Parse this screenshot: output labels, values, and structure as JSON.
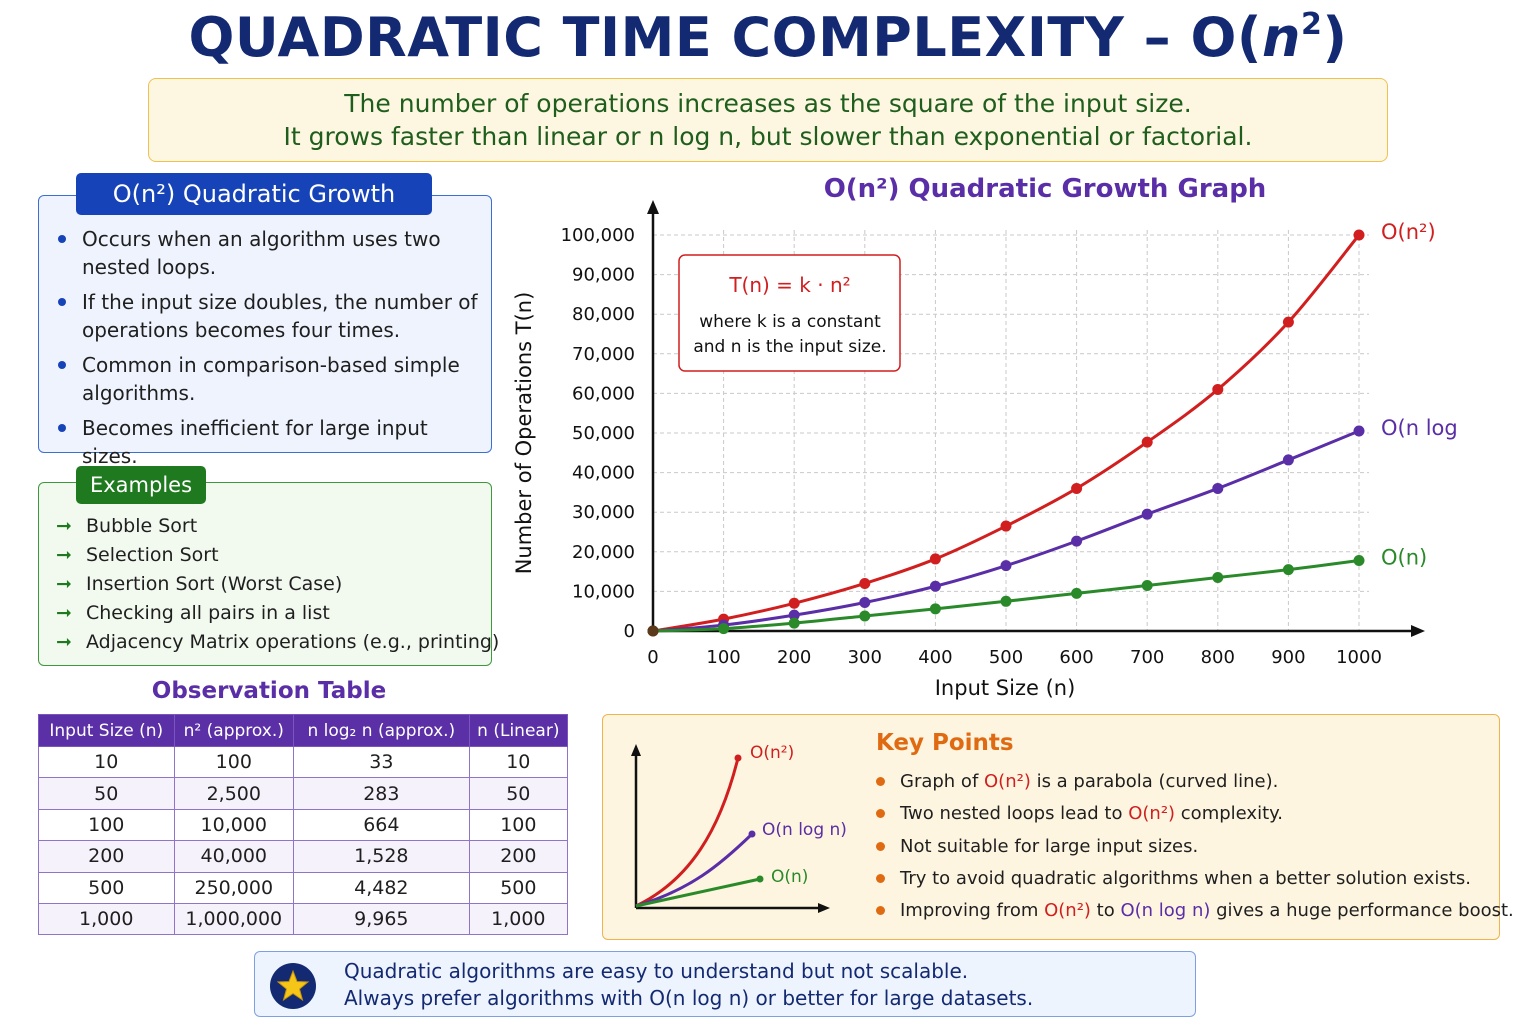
{
  "title": {
    "prefix": "QUADRATIC TIME COMPLEXITY – O(",
    "var": "n",
    "sup": "2",
    "suffix": ")"
  },
  "intro": {
    "line1": "The number of operations increases as the square of the input size.",
    "line2": "It grows faster than linear or n log n, but slower than exponential or factorial."
  },
  "growth": {
    "heading": "O(n²) Quadratic Growth",
    "items": [
      "Occurs when an algorithm uses two nested loops.",
      "If the input size doubles, the number of operations becomes four times.",
      "Common in comparison-based simple algorithms.",
      "Becomes inefficient for large input sizes."
    ]
  },
  "examples": {
    "heading": "Examples",
    "items": [
      "Bubble Sort",
      "Selection Sort",
      "Insertion Sort (Worst Case)",
      "Checking all pairs in a list",
      "Adjacency Matrix operations (e.g., printing)"
    ]
  },
  "table": {
    "title": "Observation Table",
    "headers": [
      "Input Size (n)",
      "n² (approx.)",
      "n log₂ n (approx.)",
      "n (Linear)"
    ],
    "rows": [
      [
        "10",
        "100",
        "33",
        "10"
      ],
      [
        "50",
        "2,500",
        "283",
        "50"
      ],
      [
        "100",
        "10,000",
        "664",
        "100"
      ],
      [
        "200",
        "40,000",
        "1,528",
        "200"
      ],
      [
        "500",
        "250,000",
        "4,482",
        "500"
      ],
      [
        "1,000",
        "1,000,000",
        "9,965",
        "1,000"
      ]
    ]
  },
  "chart_data": {
    "type": "line",
    "title": "O(n²) Quadratic Growth Graph",
    "xlabel": "Input Size (n)",
    "ylabel": "Number of Operations T(n)",
    "x": [
      0,
      100,
      200,
      300,
      400,
      500,
      600,
      700,
      800,
      900,
      1000
    ],
    "xlim": [
      0,
      1000
    ],
    "ylim": [
      0,
      100000
    ],
    "x_ticks": [
      "0",
      "100",
      "200",
      "300",
      "400",
      "500",
      "600",
      "700",
      "800",
      "900",
      "1000"
    ],
    "y_ticks": [
      "0",
      "10,000",
      "20,000",
      "30,000",
      "40,000",
      "50,000",
      "60,000",
      "70,000",
      "80,000",
      "90,000",
      "100,000"
    ],
    "grid": true,
    "series": [
      {
        "name": "O(n²)",
        "color": "#d11f1f",
        "values": [
          0,
          3000,
          7000,
          12000,
          18200,
          26500,
          36000,
          47700,
          61000,
          78000,
          100000
        ]
      },
      {
        "name": "O(n log n)",
        "color": "#5a2ea6",
        "values": [
          0,
          1500,
          4000,
          7200,
          11300,
          16500,
          22700,
          29500,
          36000,
          43200,
          50500
        ]
      },
      {
        "name": "O(n)",
        "color": "#2a8a2a",
        "values": [
          0,
          600,
          2000,
          3800,
          5600,
          7500,
          9500,
          11500,
          13500,
          15500,
          17800
        ]
      }
    ],
    "annotation": {
      "formula": "T(n) = k · n²",
      "line1": "where k is a constant",
      "line2": "and n is the input size."
    }
  },
  "key_points": {
    "heading": "Key Points",
    "mini_labels": [
      "O(n²)",
      "O(n log n)",
      "O(n)"
    ],
    "items": [
      {
        "parts": [
          [
            "Graph of ",
            ""
          ],
          [
            "O(n²)",
            "red"
          ],
          [
            " is a parabola (curved line).",
            ""
          ]
        ]
      },
      {
        "parts": [
          [
            "Two nested loops lead to ",
            ""
          ],
          [
            "O(n²)",
            "red"
          ],
          [
            " complexity.",
            ""
          ]
        ]
      },
      {
        "parts": [
          [
            "Not suitable for large input sizes.",
            ""
          ]
        ]
      },
      {
        "parts": [
          [
            "Try to avoid quadratic algorithms when a better solution exists.",
            ""
          ]
        ]
      },
      {
        "parts": [
          [
            "Improving from ",
            ""
          ],
          [
            "O(n²)",
            "red"
          ],
          [
            " to ",
            ""
          ],
          [
            "O(n log n)",
            "purple"
          ],
          [
            " gives a huge performance boost.",
            ""
          ]
        ]
      }
    ]
  },
  "footer": {
    "icon": "star-icon",
    "line1": "Quadratic algorithms are easy to understand but not scalable.",
    "line2": "Always prefer algorithms with O(n log n) or better for large datasets."
  }
}
